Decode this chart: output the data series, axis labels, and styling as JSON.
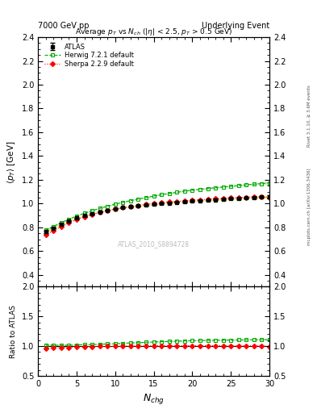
{
  "title_left": "7000 GeV pp",
  "title_right": "Underlying Event",
  "plot_title": "Average $p_T$ vs $N_{ch}$ ($|\\eta|$ < 2.5, $p_T$ > 0.5 GeV)",
  "xlabel": "$N_{chg}$",
  "ylabel_main": "$\\langle p_T \\rangle$ [GeV]",
  "ylabel_ratio": "Ratio to ATLAS",
  "watermark": "ATLAS_2010_S8894728",
  "side_text_top": "Rivet 3.1.10, ≥ 3.6M events",
  "side_text_bottom": "mcplots.cern.ch [arXiv:1306.3436]",
  "ylim_main": [
    0.3,
    2.4
  ],
  "ylim_ratio": [
    0.5,
    2.0
  ],
  "xlim": [
    0,
    30
  ],
  "yticks_main": [
    0.4,
    0.6,
    0.8,
    1.0,
    1.2,
    1.4,
    1.6,
    1.8,
    2.0,
    2.2,
    2.4
  ],
  "yticks_ratio": [
    0.5,
    1.0,
    1.5,
    2.0
  ],
  "xticks": [
    0,
    5,
    10,
    15,
    20,
    25,
    30
  ],
  "atlas_x": [
    1,
    2,
    3,
    4,
    5,
    6,
    7,
    8,
    9,
    10,
    11,
    12,
    13,
    14,
    15,
    16,
    17,
    18,
    19,
    20,
    21,
    22,
    23,
    24,
    25,
    26,
    27,
    28,
    29,
    30
  ],
  "atlas_y": [
    0.762,
    0.795,
    0.827,
    0.855,
    0.878,
    0.897,
    0.916,
    0.93,
    0.944,
    0.956,
    0.965,
    0.972,
    0.98,
    0.987,
    0.993,
    1.0,
    1.005,
    1.01,
    1.015,
    1.02,
    1.024,
    1.028,
    1.032,
    1.036,
    1.04,
    1.044,
    1.047,
    1.05,
    1.054,
    1.057
  ],
  "atlas_yerr": [
    0.008,
    0.006,
    0.005,
    0.005,
    0.004,
    0.004,
    0.004,
    0.004,
    0.004,
    0.004,
    0.004,
    0.004,
    0.004,
    0.004,
    0.004,
    0.004,
    0.004,
    0.004,
    0.004,
    0.004,
    0.004,
    0.004,
    0.004,
    0.005,
    0.005,
    0.005,
    0.005,
    0.006,
    0.007,
    0.012
  ],
  "herwig_x": [
    1,
    2,
    3,
    4,
    5,
    6,
    7,
    8,
    9,
    10,
    11,
    12,
    13,
    14,
    15,
    16,
    17,
    18,
    19,
    20,
    21,
    22,
    23,
    24,
    25,
    26,
    27,
    28,
    29,
    30
  ],
  "herwig_y": [
    0.775,
    0.808,
    0.84,
    0.868,
    0.895,
    0.918,
    0.94,
    0.96,
    0.978,
    0.995,
    1.01,
    1.025,
    1.038,
    1.05,
    1.063,
    1.075,
    1.085,
    1.095,
    1.105,
    1.113,
    1.12,
    1.127,
    1.133,
    1.14,
    1.145,
    1.152,
    1.158,
    1.163,
    1.168,
    1.175
  ],
  "herwig_yerr": [
    0.01,
    0.008,
    0.006,
    0.005,
    0.004,
    0.004,
    0.004,
    0.004,
    0.004,
    0.004,
    0.004,
    0.004,
    0.004,
    0.004,
    0.004,
    0.004,
    0.004,
    0.004,
    0.004,
    0.004,
    0.004,
    0.004,
    0.005,
    0.005,
    0.005,
    0.005,
    0.006,
    0.006,
    0.007,
    0.012
  ],
  "sherpa_x": [
    1,
    2,
    3,
    4,
    5,
    6,
    7,
    8,
    9,
    10,
    11,
    12,
    13,
    14,
    15,
    16,
    17,
    18,
    19,
    20,
    21,
    22,
    23,
    24,
    25,
    26,
    27,
    28,
    29,
    30
  ],
  "sherpa_y": [
    0.735,
    0.772,
    0.806,
    0.838,
    0.865,
    0.888,
    0.908,
    0.926,
    0.941,
    0.954,
    0.966,
    0.976,
    0.985,
    0.993,
    1.0,
    1.007,
    1.013,
    1.018,
    1.023,
    1.028,
    1.032,
    1.036,
    1.04,
    1.043,
    1.047,
    1.05,
    1.053,
    1.056,
    1.058,
    1.05
  ],
  "sherpa_yerr": [
    0.01,
    0.008,
    0.006,
    0.005,
    0.004,
    0.004,
    0.004,
    0.003,
    0.003,
    0.003,
    0.003,
    0.003,
    0.003,
    0.003,
    0.003,
    0.003,
    0.003,
    0.003,
    0.003,
    0.003,
    0.003,
    0.003,
    0.004,
    0.004,
    0.004,
    0.005,
    0.005,
    0.006,
    0.007,
    0.012
  ],
  "atlas_color": "#000000",
  "herwig_color": "#00aa00",
  "sherpa_color": "#ff0000",
  "herwig_band_color": "#88dd88",
  "atlas_band_color": "#dddd00",
  "legend_labels": [
    "ATLAS",
    "Herwig 7.2.1 default",
    "Sherpa 2.2.9 default"
  ],
  "bg_color": "#ffffff"
}
